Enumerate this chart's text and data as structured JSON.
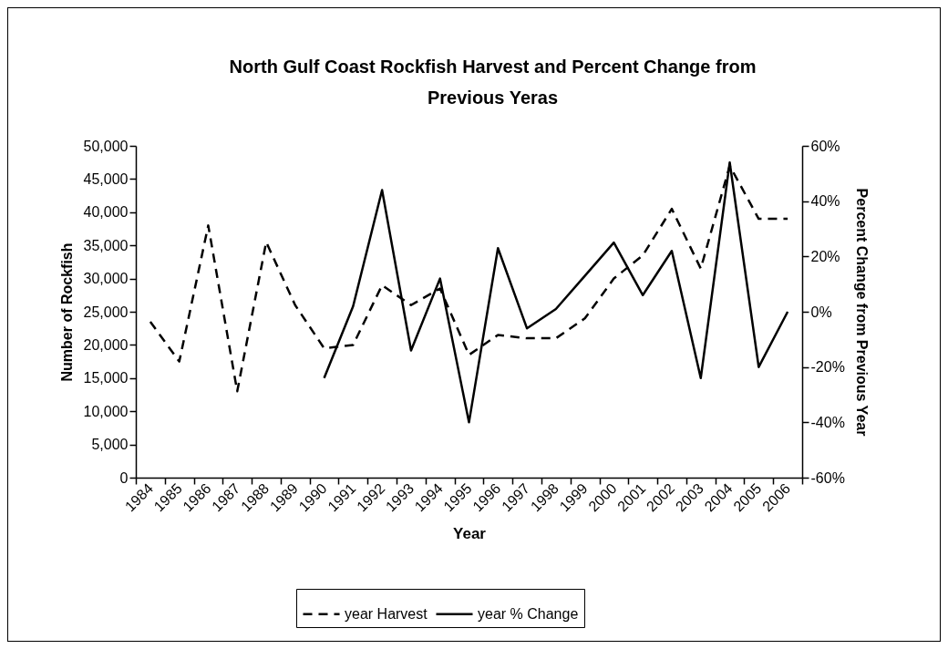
{
  "chart_data": {
    "type": "line",
    "title": "North Gulf Coast Rockfish Harvest and Percent Change from Previous Yeras",
    "xlabel": "Year",
    "ylabel": "Number of Rockfish",
    "y2label": "Percent Change from Previous Year",
    "categories": [
      "1984",
      "1985",
      "1986",
      "1987",
      "1988",
      "1989",
      "1990",
      "1991",
      "1992",
      "1993",
      "1994",
      "1995",
      "1996",
      "1997",
      "1998",
      "1999",
      "2000",
      "2001",
      "2002",
      "2003",
      "2004",
      "2005",
      "2006"
    ],
    "series": [
      {
        "name": "year Harvest",
        "color": "#000000",
        "line_style": "dashed",
        "values": [
          23500,
          17500,
          38000,
          13000,
          35500,
          26000,
          19500,
          20000,
          29000,
          26000,
          28500,
          18500,
          21500,
          21000,
          21000,
          24000,
          30000,
          33500,
          40500,
          31500,
          47000,
          39000,
          39000
        ]
      },
      {
        "name": "year % Change",
        "color": "#000000",
        "line_style": "solid",
        "axis": "y2",
        "values": [
          null,
          null,
          null,
          null,
          null,
          null,
          -24,
          2,
          44,
          -14,
          12,
          -40,
          23,
          -6,
          1,
          13,
          25,
          6,
          22,
          -24,
          54,
          -20,
          0
        ]
      }
    ],
    "ylim": [
      0,
      50000
    ],
    "yticks": [
      {
        "value": 0,
        "label": "0"
      },
      {
        "value": 5000,
        "label": "5,000"
      },
      {
        "value": 10000,
        "label": "10,000"
      },
      {
        "value": 15000,
        "label": "15,000"
      },
      {
        "value": 20000,
        "label": "20,000"
      },
      {
        "value": 25000,
        "label": "25,000"
      },
      {
        "value": 30000,
        "label": "30,000"
      },
      {
        "value": 35000,
        "label": "35,000"
      },
      {
        "value": 40000,
        "label": "40,000"
      },
      {
        "value": 45000,
        "label": "45,000"
      },
      {
        "value": 50000,
        "label": "50,000"
      }
    ],
    "y2lim": [
      -60,
      60
    ],
    "y2ticks": [
      {
        "value": -60,
        "label": "-60%"
      },
      {
        "value": -40,
        "label": "-40%"
      },
      {
        "value": -20,
        "label": "-20%"
      },
      {
        "value": 0,
        "label": "0%"
      },
      {
        "value": 20,
        "label": "20%"
      },
      {
        "value": 40,
        "label": "40%"
      },
      {
        "value": 60,
        "label": "60%"
      }
    ],
    "grid": false,
    "legend": "bottom",
    "marker": "none"
  }
}
